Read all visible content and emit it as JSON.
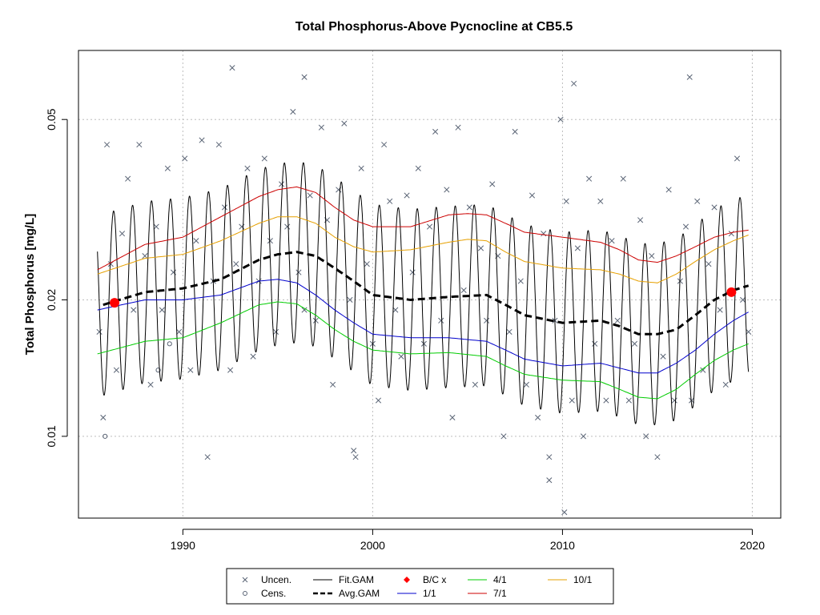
{
  "chart_data": {
    "type": "line",
    "title": "Total Phosphorus-Above Pycnocline at CB5.5",
    "xlabel": "",
    "ylabel": "Total Phosphorus [mg/L]",
    "xlim": [
      1984.5,
      2021.5
    ],
    "ylim": [
      0.0066,
      0.071
    ],
    "y_scale": "log",
    "x_ticks": [
      1990,
      2000,
      2010,
      2020
    ],
    "x_tick_labels": [
      "1990",
      "2000",
      "2010",
      "2020"
    ],
    "y_ticks": [
      0.01,
      0.02,
      0.05
    ],
    "y_tick_labels": [
      "0.01",
      "0.02",
      "0.05"
    ],
    "grid": true,
    "legend_position": "bottom",
    "legend": [
      {
        "label": "Uncen.",
        "marker": "x",
        "color": "#5a6475"
      },
      {
        "label": "Cens.",
        "marker": "circle",
        "color": "#5a6475"
      },
      {
        "label": "Fit.GAM",
        "marker": "line",
        "color": "#000000"
      },
      {
        "label": "Avg.GAM",
        "marker": "dashed-line",
        "color": "#000000"
      },
      {
        "label": "B/C x",
        "marker": "diamond",
        "color": "#ff0000"
      },
      {
        "label": "1/1",
        "marker": "line",
        "color": "#0000cc"
      },
      {
        "label": "4/1",
        "marker": "line",
        "color": "#00cc00"
      },
      {
        "label": "7/1",
        "marker": "line",
        "color": "#cc0000"
      },
      {
        "label": "10/1",
        "marker": "line",
        "color": "#e6a000"
      }
    ],
    "series": [
      {
        "name": "Avg.GAM",
        "color": "#000000",
        "x": [
          1985.8,
          1988,
          1990,
          1992,
          1994,
          1995,
          1996,
          1997,
          1998,
          1999,
          2000,
          2002,
          2004,
          2006,
          2007,
          2008,
          2010,
          2012,
          2013,
          2014,
          2015,
          2016,
          2017,
          2018,
          2019,
          2019.8
        ],
        "y": [
          0.0195,
          0.0208,
          0.0212,
          0.0222,
          0.0245,
          0.0252,
          0.0255,
          0.025,
          0.0235,
          0.022,
          0.0205,
          0.02,
          0.0203,
          0.0205,
          0.0195,
          0.0185,
          0.0178,
          0.018,
          0.0175,
          0.0168,
          0.0168,
          0.0172,
          0.0185,
          0.02,
          0.021,
          0.0215
        ]
      },
      {
        "name": "1/1",
        "color": "#0000cc",
        "x": [
          1985.5,
          1988,
          1990,
          1992,
          1994,
          1995,
          1996,
          1997,
          1998,
          1999,
          2000,
          2002,
          2004,
          2006,
          2007,
          2008,
          2010,
          2012,
          2014,
          2015,
          2016,
          2017,
          2018,
          2019,
          2019.8
        ],
        "y": [
          0.019,
          0.02,
          0.02,
          0.0205,
          0.022,
          0.0222,
          0.0218,
          0.0205,
          0.019,
          0.0178,
          0.0168,
          0.0165,
          0.0165,
          0.0162,
          0.0155,
          0.0148,
          0.0143,
          0.0145,
          0.0138,
          0.0138,
          0.0145,
          0.0155,
          0.0168,
          0.018,
          0.0188
        ]
      },
      {
        "name": "4/1",
        "color": "#00cc00",
        "x": [
          1985.5,
          1988,
          1990,
          1992,
          1994,
          1995,
          1996,
          1997,
          1998,
          1999,
          2000,
          2002,
          2004,
          2006,
          2007,
          2008,
          2010,
          2012,
          2013,
          2014,
          2015,
          2016,
          2017,
          2018,
          2019,
          2019.8
        ],
        "y": [
          0.0152,
          0.0162,
          0.0165,
          0.0178,
          0.0195,
          0.0198,
          0.0196,
          0.0185,
          0.0172,
          0.0162,
          0.0155,
          0.0152,
          0.0153,
          0.015,
          0.0143,
          0.0137,
          0.0133,
          0.0132,
          0.0127,
          0.0122,
          0.0121,
          0.0127,
          0.0137,
          0.0147,
          0.0155,
          0.016
        ]
      },
      {
        "name": "7/1",
        "color": "#cc0000",
        "x": [
          1985.5,
          1988,
          1990,
          1992,
          1994,
          1995,
          1996,
          1997,
          1998,
          1999,
          2000,
          2002,
          2004,
          2005,
          2006,
          2007,
          2008,
          2010,
          2012,
          2013,
          2014,
          2015,
          2016,
          2017,
          2018,
          2019,
          2019.8
        ],
        "y": [
          0.0233,
          0.0265,
          0.0275,
          0.0305,
          0.0338,
          0.035,
          0.0355,
          0.0345,
          0.032,
          0.03,
          0.029,
          0.029,
          0.0308,
          0.031,
          0.0308,
          0.0295,
          0.0282,
          0.0275,
          0.0268,
          0.0258,
          0.0245,
          0.0242,
          0.025,
          0.0262,
          0.0275,
          0.0282,
          0.0285
        ]
      },
      {
        "name": "10/1",
        "color": "#e6a000",
        "x": [
          1985.5,
          1988,
          1990,
          1992,
          1994,
          1995,
          1996,
          1997,
          1998,
          1999,
          2000,
          2002,
          2004,
          2005,
          2006,
          2007,
          2008,
          2010,
          2012,
          2013,
          2014,
          2015,
          2016,
          2017,
          2018,
          2019,
          2019.8
        ],
        "y": [
          0.0228,
          0.0247,
          0.0252,
          0.027,
          0.0295,
          0.0305,
          0.0305,
          0.0295,
          0.0275,
          0.0262,
          0.0255,
          0.0258,
          0.0268,
          0.0272,
          0.027,
          0.0255,
          0.0243,
          0.0235,
          0.0233,
          0.0228,
          0.022,
          0.0218,
          0.0228,
          0.0243,
          0.0258,
          0.027,
          0.0278
        ]
      }
    ],
    "fit_gam": {
      "name": "Fit.GAM",
      "color": "#000000",
      "x_start": 1985.5,
      "x_end": 2019.8,
      "period": 1.0,
      "amplitude_log": 0.4
    },
    "bc_points": {
      "name": "B/C x",
      "color": "#ff0000",
      "x": [
        1986.4,
        2018.9
      ],
      "y": [
        0.0197,
        0.0208
      ]
    },
    "observations_uncensored": {
      "name": "Uncen.",
      "color": "#5a6475",
      "x": [
        1985.6,
        1985.8,
        1986.0,
        1986.2,
        1986.5,
        1986.8,
        1987.1,
        1987.4,
        1987.7,
        1988.0,
        1988.3,
        1988.6,
        1988.9,
        1989.2,
        1989.5,
        1989.8,
        1990.1,
        1990.4,
        1990.7,
        1991.0,
        1991.3,
        1991.6,
        1991.9,
        1992.2,
        1992.5,
        1992.8,
        1993.1,
        1993.4,
        1993.7,
        1994.0,
        1994.3,
        1994.6,
        1994.9,
        1995.2,
        1995.5,
        1995.8,
        1996.1,
        1996.4,
        1996.7,
        1997.0,
        1997.3,
        1997.6,
        1997.9,
        1998.2,
        1998.5,
        1998.8,
        1999.1,
        1999.4,
        1999.7,
        2000.0,
        2000.3,
        2000.6,
        2000.9,
        2001.2,
        2001.5,
        2001.8,
        2002.1,
        2002.4,
        2002.7,
        2003.0,
        2003.3,
        2003.6,
        2003.9,
        2004.2,
        2004.5,
        2004.8,
        2005.1,
        2005.4,
        2005.7,
        2006.0,
        2006.3,
        2006.6,
        2006.9,
        2007.2,
        2007.5,
        2007.8,
        2008.1,
        2008.4,
        2008.7,
        2009.0,
        2009.3,
        2009.6,
        2009.9,
        2010.2,
        2010.5,
        2010.8,
        2011.1,
        2011.4,
        2011.7,
        2012.0,
        2012.3,
        2012.6,
        2012.9,
        2013.2,
        2013.5,
        2013.8,
        2014.1,
        2014.4,
        2014.7,
        2015.0,
        2015.3,
        2015.6,
        2015.9,
        2016.2,
        2016.5,
        2016.8,
        2017.1,
        2017.4,
        2017.7,
        2018.0,
        2018.3,
        2018.6,
        2018.9,
        2019.2,
        2019.5,
        2019.8,
        1992.6,
        1996.4,
        2010.6,
        2016.7,
        2010.1,
        1999.0,
        2009.3
      ],
      "y": [
        0.017,
        0.011,
        0.044,
        0.024,
        0.014,
        0.028,
        0.037,
        0.019,
        0.044,
        0.025,
        0.013,
        0.029,
        0.019,
        0.039,
        0.023,
        0.017,
        0.041,
        0.014,
        0.027,
        0.045,
        0.009,
        0.022,
        0.044,
        0.032,
        0.014,
        0.024,
        0.029,
        0.039,
        0.015,
        0.022,
        0.041,
        0.027,
        0.017,
        0.036,
        0.029,
        0.052,
        0.023,
        0.019,
        0.034,
        0.018,
        0.048,
        0.03,
        0.013,
        0.035,
        0.049,
        0.02,
        0.009,
        0.039,
        0.024,
        0.016,
        0.012,
        0.044,
        0.033,
        0.019,
        0.015,
        0.034,
        0.023,
        0.039,
        0.016,
        0.029,
        0.047,
        0.018,
        0.035,
        0.011,
        0.048,
        0.021,
        0.032,
        0.013,
        0.026,
        0.018,
        0.036,
        0.025,
        0.01,
        0.017,
        0.047,
        0.022,
        0.013,
        0.034,
        0.011,
        0.028,
        0.009,
        0.018,
        0.05,
        0.033,
        0.012,
        0.026,
        0.01,
        0.037,
        0.016,
        0.033,
        0.012,
        0.027,
        0.018,
        0.037,
        0.012,
        0.016,
        0.03,
        0.01,
        0.025,
        0.009,
        0.015,
        0.035,
        0.012,
        0.022,
        0.029,
        0.012,
        0.033,
        0.014,
        0.024,
        0.032,
        0.019,
        0.013,
        0.028,
        0.041,
        0.02,
        0.017,
        0.065,
        0.062,
        0.06,
        0.062,
        0.0068,
        0.0093,
        0.008
      ]
    },
    "observations_censored": {
      "name": "Cens.",
      "color": "#5a6475",
      "x": [
        1985.9,
        1988.7,
        1989.3
      ],
      "y": [
        0.01,
        0.014,
        0.016
      ]
    }
  }
}
